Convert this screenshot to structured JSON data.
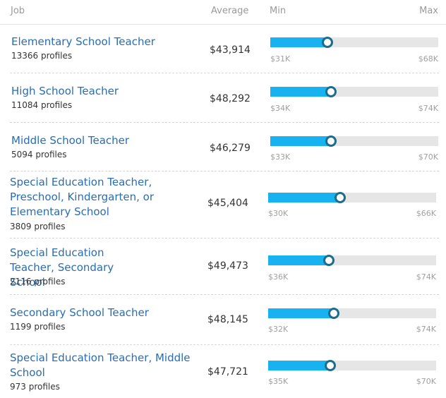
{
  "header": {
    "job": "Job",
    "average": "Average",
    "min": "Min",
    "max": "Max"
  },
  "rows": [
    {
      "title": "Elementary School Teacher",
      "profiles": "13366 profiles",
      "average": "$43,914",
      "min": "$31K",
      "max": "$68K",
      "position": 0.34
    },
    {
      "title": "High School Teacher",
      "profiles": "11084 profiles",
      "average": "$48,292",
      "min": "$34K",
      "max": "$74K",
      "position": 0.36
    },
    {
      "title": "Middle School Teacher",
      "profiles": "5094 profiles",
      "average": "$46,279",
      "min": "$33K",
      "max": "$70K",
      "position": 0.36
    },
    {
      "title": "Special Education Teacher, Preschool, Kindergarten, or Elementary School",
      "profiles": "3809 profiles",
      "average": "$45,404",
      "min": "$30K",
      "max": "$66K",
      "position": 0.43
    },
    {
      "title": "Special Education Teacher, Secondary School",
      "profiles": "2116 profiles",
      "average": "$49,473",
      "min": "$36K",
      "max": "$74K",
      "position": 0.36
    },
    {
      "title": "Secondary School Teacher",
      "profiles": "1199 profiles",
      "average": "$48,145",
      "min": "$32K",
      "max": "$74K",
      "position": 0.39
    },
    {
      "title": "Special Education Teacher, Middle School",
      "profiles": "973 profiles",
      "average": "$47,721",
      "min": "$35K",
      "max": "$70K",
      "position": 0.37
    }
  ]
}
